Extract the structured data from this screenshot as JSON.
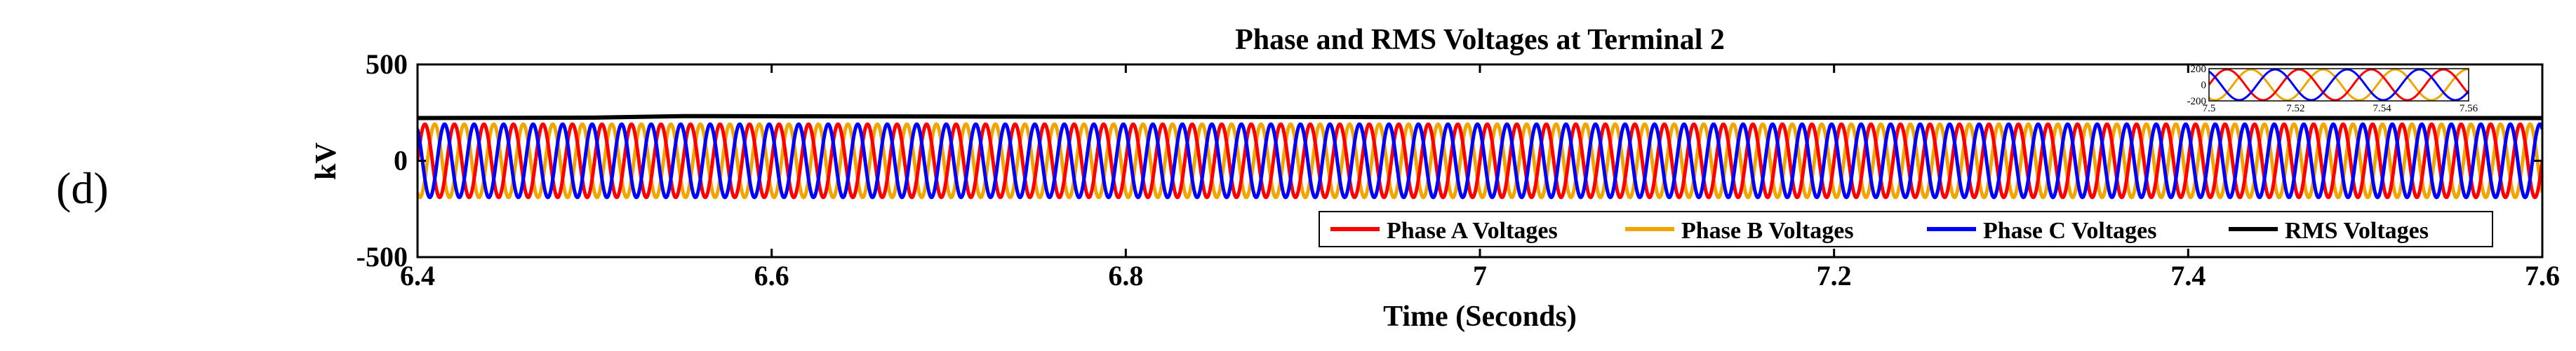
{
  "panel_label": "(d)",
  "chart_data": {
    "type": "line",
    "title": "Phase and RMS Voltages at Terminal 2",
    "xlabel": "Time (Seconds)",
    "ylabel": "kV",
    "xlim": [
      6.4,
      7.6
    ],
    "ylim": [
      -500,
      500
    ],
    "x_ticks": [
      "6.4",
      "6.6",
      "6.8",
      "7",
      "7.2",
      "7.4",
      "7.6"
    ],
    "y_ticks": [
      "500",
      "0",
      "-500"
    ],
    "grid": false,
    "legend_position": "bottom-right",
    "frequency_hz": 60,
    "series": [
      {
        "name": "Phase A Voltages",
        "color": "#ff0000",
        "amplitude_kv": 190,
        "phase_deg": 0
      },
      {
        "name": "Phase B Voltages",
        "color": "#f0a500",
        "amplitude_kv": 190,
        "phase_deg": -120
      },
      {
        "name": "Phase C Voltages",
        "color": "#0000ff",
        "amplitude_kv": 190,
        "phase_deg": 120
      },
      {
        "name": "RMS Voltages",
        "color": "#000000",
        "points": [
          [
            6.4,
            222
          ],
          [
            6.5,
            224
          ],
          [
            6.55,
            232
          ],
          [
            6.7,
            230
          ],
          [
            7.0,
            226
          ],
          [
            7.3,
            222
          ],
          [
            7.6,
            222
          ]
        ]
      }
    ],
    "inset": {
      "xlim": [
        7.5,
        7.56
      ],
      "ylim": [
        -200,
        200
      ],
      "x_ticks": [
        "7.5",
        "7.52",
        "7.54",
        "7.56"
      ],
      "y_ticks": [
        "200",
        "0",
        "-200"
      ]
    }
  }
}
